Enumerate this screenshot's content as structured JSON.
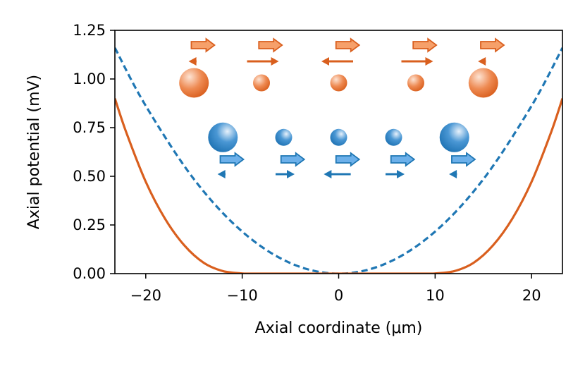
{
  "chart_data": {
    "type": "line",
    "xlabel": "Axial coordinate (μm)",
    "ylabel": "Axial potential (mV)",
    "xlim": [
      -23.2,
      23.2
    ],
    "ylim": [
      0,
      1.25
    ],
    "x_ticks": [
      -20,
      -10,
      0,
      10,
      20
    ],
    "x_tick_labels": [
      "−20",
      "−10",
      "0",
      "10",
      "20"
    ],
    "y_ticks": [
      0,
      0.25,
      0.5,
      0.75,
      1.0,
      1.25
    ],
    "y_tick_labels": [
      "0.00",
      "0.25",
      "0.50",
      "0.75",
      "1.00",
      "1.25"
    ],
    "grid": false,
    "series": [
      {
        "style": "dashed",
        "color": "#1f77b4",
        "x": [
          -23.2,
          -20,
          -15,
          -10,
          -5,
          0,
          5,
          10,
          15,
          20,
          23.2
        ],
        "y": [
          1.16,
          0.862,
          0.485,
          0.216,
          0.054,
          0,
          0.054,
          0.216,
          0.485,
          0.862,
          1.16
        ]
      },
      {
        "style": "solid",
        "color": "#d95f1e",
        "x": [
          -23.2,
          -22,
          -20,
          -18,
          -16,
          -14,
          -12,
          -10,
          -9,
          0,
          9,
          10,
          12,
          14,
          16,
          18,
          20,
          22,
          23.2
        ],
        "y": [
          0.9,
          0.723,
          0.472,
          0.282,
          0.145,
          0.056,
          0.013,
          0.001,
          0,
          0,
          0,
          0.001,
          0.013,
          0.056,
          0.145,
          0.282,
          0.472,
          0.723,
          0.9
        ]
      }
    ],
    "ions": {
      "orange": {
        "color": "#d95f1e",
        "y": 0.98,
        "positions": [
          -15,
          -8,
          0,
          8,
          15
        ],
        "relative_sizes": [
          1.0,
          0.6,
          0.6,
          0.6,
          1.0
        ],
        "hollow_arrows": [
          {
            "x": 0.9,
            "length": 0.35
          },
          {
            "x": 0.9,
            "length": 0.35
          },
          {
            "x": 0.9,
            "length": 0.35
          },
          {
            "x": 0.9,
            "length": 0.35
          },
          {
            "x": 0.9,
            "length": 0.35
          }
        ],
        "line_arrows": [
          -0.25,
          1.0,
          -1.0,
          1.0,
          -0.25
        ]
      },
      "blue": {
        "color": "#1f77b4",
        "y": 0.7,
        "positions": [
          -12,
          -5.7,
          0,
          5.7,
          12
        ],
        "relative_sizes": [
          1.0,
          0.6,
          0.6,
          0.6,
          1.0
        ],
        "hollow_arrows": [
          {
            "x": 0.9,
            "length": 0.35
          },
          {
            "x": 0.9,
            "length": 0.35
          },
          {
            "x": 0.9,
            "length": 0.35
          },
          {
            "x": 0.9,
            "length": 0.35
          },
          {
            "x": 0.9,
            "length": 0.35
          }
        ],
        "line_arrows": [
          -0.25,
          0.6,
          -0.85,
          0.6,
          -0.25
        ]
      }
    }
  }
}
